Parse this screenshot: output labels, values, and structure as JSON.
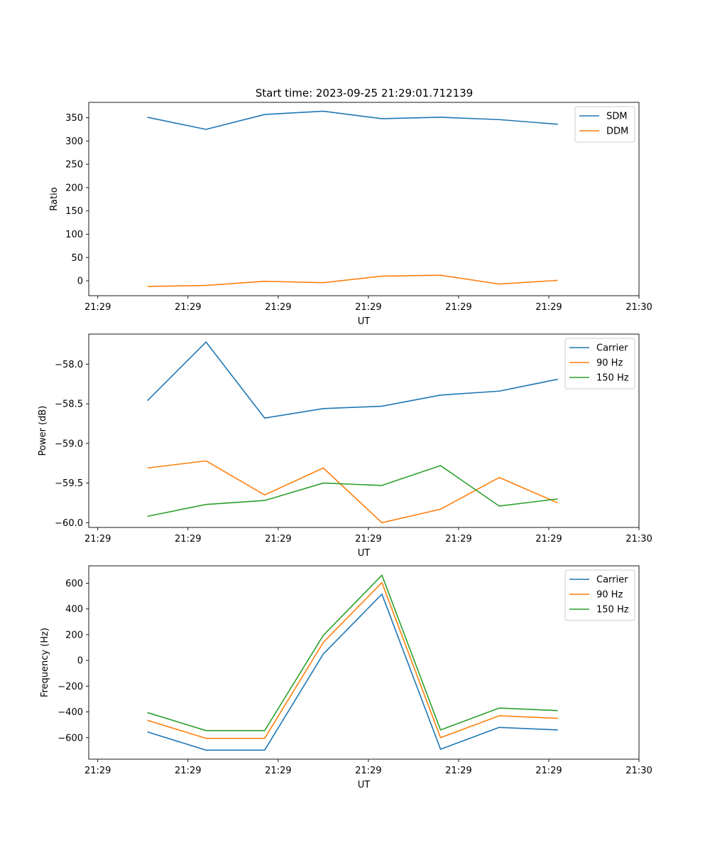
{
  "title": "Start time: 2023-09-25 21:29:01.712139",
  "colors": {
    "blue": "#1f77b4",
    "orange": "#ff7f0e",
    "green": "#2ca02c"
  },
  "chart_data": [
    {
      "type": "line",
      "title": "Start time: 2023-09-25 21:29:01.712139",
      "xlabel": "UT",
      "ylabel": "Ratio",
      "x": [
        0.65,
        1.3,
        1.95,
        2.6,
        3.25,
        3.9,
        4.55,
        5.2
      ],
      "xlim": [
        0,
        6.1
      ],
      "xticks": [
        0.1,
        1.1,
        2.1,
        3.1,
        4.1,
        5.1,
        6.1
      ],
      "xtick_labels": [
        "21:29",
        "21:29",
        "21:29",
        "21:29",
        "21:29",
        "21:29",
        "21:30"
      ],
      "ylim": [
        -32,
        383
      ],
      "yticks": [
        0,
        50,
        100,
        150,
        200,
        250,
        300,
        350
      ],
      "ytick_labels": [
        "0",
        "50",
        "100",
        "150",
        "200",
        "250",
        "300",
        "350"
      ],
      "legend": "top-right",
      "series": [
        {
          "name": "SDM",
          "color": "#1f77b4",
          "values": [
            351,
            325,
            357,
            364,
            348,
            351,
            346,
            336
          ]
        },
        {
          "name": "DDM",
          "color": "#ff7f0e",
          "values": [
            -12,
            -10,
            -1,
            -4,
            10,
            12,
            -7,
            1
          ]
        }
      ]
    },
    {
      "type": "line",
      "title": "",
      "xlabel": "UT",
      "ylabel": "Power (dB)",
      "x": [
        0.65,
        1.3,
        1.95,
        2.6,
        3.25,
        3.9,
        4.55,
        5.2
      ],
      "xlim": [
        0,
        6.1
      ],
      "xticks": [
        0.1,
        1.1,
        2.1,
        3.1,
        4.1,
        5.1,
        6.1
      ],
      "xtick_labels": [
        "21:29",
        "21:29",
        "21:29",
        "21:29",
        "21:29",
        "21:29",
        "21:30"
      ],
      "ylim": [
        -60.06,
        -57.62
      ],
      "yticks": [
        -60.0,
        -59.5,
        -59.0,
        -58.5,
        -58.0
      ],
      "ytick_labels": [
        "−60.0",
        "−59.5",
        "−59.0",
        "−58.5",
        "−58.0"
      ],
      "legend": "top-right",
      "series": [
        {
          "name": "Carrier",
          "color": "#1f77b4",
          "values": [
            -58.46,
            -57.72,
            -58.68,
            -58.56,
            -58.53,
            -58.39,
            -58.34,
            -58.19
          ]
        },
        {
          "name": "90 Hz",
          "color": "#ff7f0e",
          "values": [
            -59.31,
            -59.22,
            -59.65,
            -59.31,
            -60.0,
            -59.83,
            -59.43,
            -59.75
          ]
        },
        {
          "name": "150 Hz",
          "color": "#2ca02c",
          "values": [
            -59.92,
            -59.77,
            -59.72,
            -59.5,
            -59.53,
            -59.28,
            -59.79,
            -59.7
          ]
        }
      ]
    },
    {
      "type": "line",
      "title": "",
      "xlabel": "UT",
      "ylabel": "Frequency (Hz)",
      "x": [
        0.65,
        1.3,
        1.95,
        2.6,
        3.25,
        3.9,
        4.55,
        5.2
      ],
      "xlim": [
        0,
        6.1
      ],
      "xticks": [
        0.1,
        1.1,
        2.1,
        3.1,
        4.1,
        5.1,
        6.1
      ],
      "xtick_labels": [
        "21:29",
        "21:29",
        "21:29",
        "21:29",
        "21:29",
        "21:29",
        "21:30"
      ],
      "ylim": [
        -767,
        735
      ],
      "yticks": [
        -600,
        -400,
        -200,
        0,
        200,
        400,
        600
      ],
      "ytick_labels": [
        "−600",
        "−400",
        "−200",
        "0",
        "200",
        "400",
        "600"
      ],
      "legend": "top-right",
      "series": [
        {
          "name": "Carrier",
          "color": "#1f77b4",
          "values": [
            -555,
            -697,
            -697,
            50,
            515,
            -690,
            -520,
            -540
          ]
        },
        {
          "name": "90 Hz",
          "color": "#ff7f0e",
          "values": [
            -465,
            -605,
            -605,
            140,
            605,
            -600,
            -430,
            -450
          ]
        },
        {
          "name": "150 Hz",
          "color": "#2ca02c",
          "values": [
            -405,
            -545,
            -545,
            195,
            662,
            -540,
            -370,
            -390
          ]
        }
      ]
    }
  ]
}
